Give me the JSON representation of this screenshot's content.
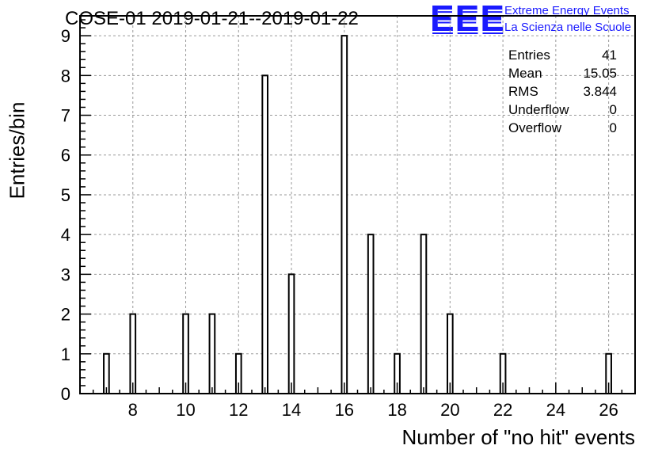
{
  "chart_data": {
    "type": "bar",
    "title": "COSE-01 2019-01-21--2019-01-22",
    "xlabel": "Number of \"no hit\" events",
    "ylabel": "Entries/bin",
    "x": [
      7,
      8,
      10,
      11,
      12,
      13,
      14,
      16,
      17,
      18,
      19,
      20,
      22,
      26
    ],
    "values": [
      1,
      2,
      2,
      2,
      1,
      8,
      3,
      9,
      4,
      1,
      4,
      2,
      1,
      1
    ],
    "xlim": [
      6,
      27
    ],
    "ylim": [
      0,
      9.5
    ],
    "xticks": [
      8,
      10,
      12,
      14,
      16,
      18,
      20,
      22,
      24,
      26
    ],
    "yticks": [
      0,
      1,
      2,
      3,
      4,
      5,
      6,
      7,
      8,
      9
    ],
    "grid": true,
    "stats": [
      {
        "name": "Entries",
        "value": "41"
      },
      {
        "name": "Mean",
        "value": "15.05"
      },
      {
        "name": "RMS",
        "value": "3.844"
      },
      {
        "name": "Underflow",
        "value": "0"
      },
      {
        "name": "Overflow",
        "value": "0"
      }
    ]
  },
  "logo": {
    "mark": "EEE",
    "line1": "Extreme Energy Events",
    "line2": "La Scienza nelle Scuole",
    "color": "#1a1aff"
  }
}
